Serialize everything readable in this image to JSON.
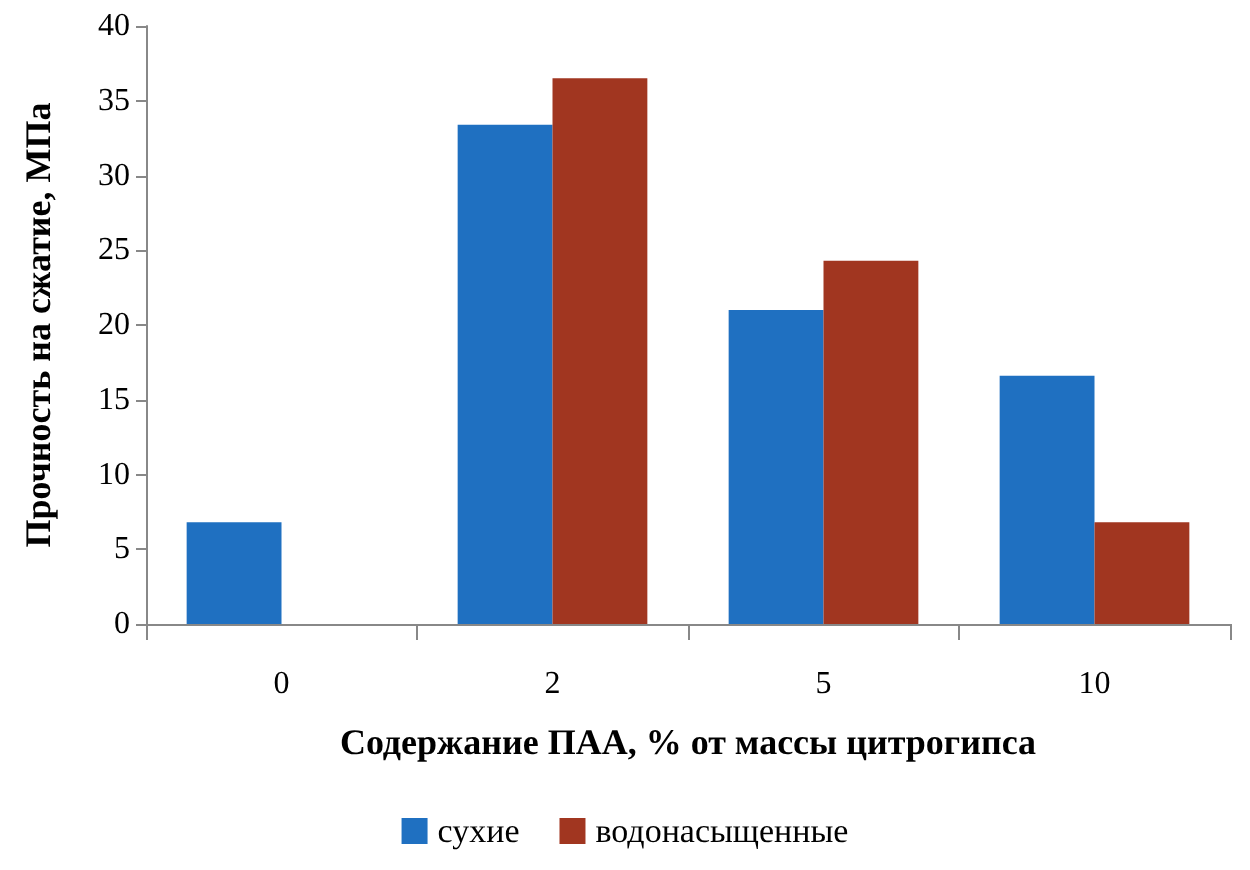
{
  "chart_data": {
    "type": "bar",
    "xlabel": "Содержание ПАА, % от массы цитрогипса",
    "ylabel": "Прочность на сжатие, МПа",
    "categories": [
      "0",
      "2",
      "5",
      "10"
    ],
    "series": [
      {
        "name": "сухие",
        "color": "#1f70c1",
        "values": [
          6.8,
          33.4,
          21.0,
          16.6
        ]
      },
      {
        "name": "водонасыщенные",
        "color": "#a13620",
        "values": [
          null,
          36.5,
          24.3,
          6.8
        ]
      }
    ],
    "ylim": [
      0,
      40
    ],
    "yticks": [
      0,
      5,
      10,
      15,
      20,
      25,
      30,
      35,
      40
    ],
    "grid": false,
    "legend": "bottom"
  }
}
